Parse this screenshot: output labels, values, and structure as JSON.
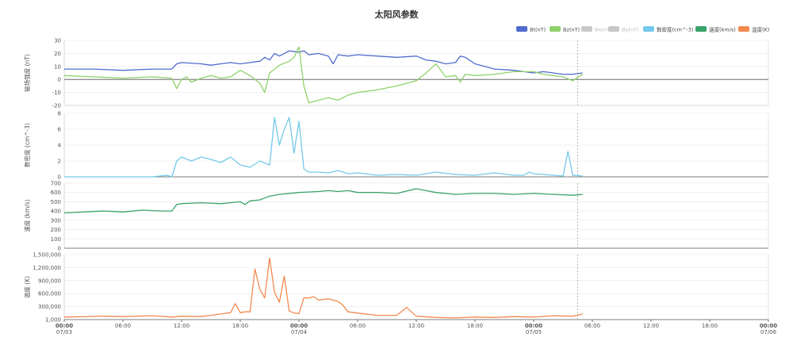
{
  "title": "太阳风参数",
  "legend": [
    {
      "name": "Bt(nT)",
      "color": "#4f6bcc",
      "active": true
    },
    {
      "name": "Bz(nT)",
      "color": "#8fd16a",
      "active": true
    },
    {
      "name": "Bx(nT)",
      "color": "#c8c8c8",
      "active": false
    },
    {
      "name": "By(nT)",
      "color": "#c8c8c8",
      "active": false
    },
    {
      "name": "数密度(cm^-3)",
      "color": "#74c9ea",
      "active": true
    },
    {
      "name": "速度(km/s)",
      "color": "#3aa36a",
      "active": true
    },
    {
      "name": "温度(K)",
      "color": "#f2894f",
      "active": true
    }
  ],
  "x_ticks": [
    {
      "t": 0,
      "time": "00:00",
      "date": "07/03",
      "bold": true
    },
    {
      "t": 6,
      "time": "06:00",
      "date": "",
      "bold": false
    },
    {
      "t": 12,
      "time": "12:00",
      "date": "",
      "bold": false
    },
    {
      "t": 18,
      "time": "18:00",
      "date": "",
      "bold": false
    },
    {
      "t": 24,
      "time": "00:00",
      "date": "07/04",
      "bold": true
    },
    {
      "t": 30,
      "time": "06:00",
      "date": "",
      "bold": false
    },
    {
      "t": 36,
      "time": "12:00",
      "date": "",
      "bold": false
    },
    {
      "t": 42,
      "time": "18:00",
      "date": "",
      "bold": false
    },
    {
      "t": 48,
      "time": "00:00",
      "date": "07/05",
      "bold": true
    },
    {
      "t": 54,
      "time": "06:00",
      "date": "",
      "bold": false
    },
    {
      "t": 60,
      "time": "12:00",
      "date": "",
      "bold": false
    },
    {
      "t": 66,
      "time": "18:00",
      "date": "",
      "bold": false
    },
    {
      "t": 72,
      "time": "00:00",
      "date": "07/06",
      "bold": true
    }
  ],
  "chart_data": [
    {
      "type": "line",
      "ylabel": "磁场强度 (nT)",
      "ylim": [
        -20,
        30
      ],
      "yticks": [
        "-20",
        "-10",
        "0",
        "10",
        "20",
        "30"
      ],
      "x_unit": "hours since 07/03 00:00",
      "series": [
        {
          "name": "Bt(nT)",
          "color": "#4f6bcc",
          "x": [
            0,
            3,
            6,
            9,
            11,
            11.5,
            12,
            14,
            15,
            16,
            17,
            18,
            19,
            20,
            20.5,
            21,
            21.5,
            22,
            22.5,
            23,
            24,
            24.5,
            25,
            26,
            27,
            27.5,
            28,
            29,
            30,
            32,
            34,
            36,
            37,
            38,
            39,
            40,
            40.5,
            41,
            42,
            43,
            44,
            46,
            48,
            49,
            50,
            51,
            52,
            53
          ],
          "y": [
            8,
            8,
            7,
            8,
            8,
            12,
            13,
            12,
            11,
            12,
            13,
            12,
            13,
            14,
            17,
            15,
            20,
            18,
            20,
            22,
            21,
            22,
            19,
            20,
            18,
            12,
            19,
            18,
            19,
            18,
            17,
            18,
            15,
            14,
            12,
            13,
            18,
            17,
            12,
            10,
            8,
            7,
            5,
            6,
            5,
            4,
            4,
            5
          ]
        },
        {
          "name": "Bz(nT)",
          "color": "#8fd16a",
          "x": [
            0,
            3,
            6,
            9,
            11,
            11.5,
            12,
            12.5,
            13,
            14,
            15,
            16,
            17,
            18,
            19,
            20,
            20.5,
            21,
            21.5,
            22,
            23,
            23.5,
            24,
            24.5,
            25,
            26,
            27,
            28,
            29,
            30,
            32,
            34,
            36,
            37,
            38,
            39,
            40,
            40.5,
            41,
            42,
            44,
            46,
            48,
            49,
            50,
            51,
            52,
            53
          ],
          "y": [
            3,
            2,
            1,
            2,
            1,
            -7,
            0,
            2,
            -2,
            1,
            3,
            1,
            2,
            7,
            3,
            -3,
            -10,
            5,
            8,
            11,
            14,
            17,
            25,
            -5,
            -18,
            -16,
            -14,
            -16,
            -12,
            -10,
            -8,
            -5,
            -1,
            5,
            12,
            2,
            3,
            -2,
            4,
            3,
            4,
            6,
            6,
            4,
            3,
            2,
            -1,
            4
          ]
        },
        {
          "name": "数密度(cm^-3)",
          "color": "#74c9ea",
          "x": [
            0,
            6,
            9,
            10.5,
            11,
            11.5,
            12,
            13,
            14,
            15,
            16,
            17,
            18,
            19,
            20,
            21,
            21.5,
            22,
            22.5,
            23,
            23.5,
            24,
            24.5,
            25,
            26,
            27,
            28,
            29,
            30,
            32,
            34,
            36,
            38,
            40,
            42,
            44,
            46,
            47,
            47.5,
            48,
            49,
            50,
            51,
            51.5,
            52,
            53
          ],
          "y": [
            0,
            0,
            0,
            0.2,
            0,
            2,
            2.5,
            2,
            2.5,
            2.2,
            1.8,
            2.5,
            1.5,
            1.2,
            2,
            1.5,
            7.5,
            4,
            6,
            7.5,
            3,
            7,
            1,
            0.6,
            0.6,
            0.5,
            0.8,
            0.4,
            0.5,
            0.2,
            0.3,
            0.2,
            0.6,
            0.3,
            0.2,
            0.5,
            0.2,
            0.2,
            0.6,
            0.4,
            0.3,
            0.2,
            0.1,
            3.2,
            0.2,
            0.1
          ]
        },
        {
          "name": "速度(km/s)",
          "color": "#3aa36a",
          "x": [
            0,
            4,
            6,
            8,
            10,
            11,
            11.5,
            12,
            14,
            16,
            17,
            18,
            18.5,
            19,
            20,
            20.5,
            21,
            22,
            24,
            26,
            27,
            28,
            29,
            30,
            32,
            34,
            36,
            37,
            38,
            40,
            42,
            44,
            46,
            48,
            50,
            52,
            53
          ],
          "y": [
            380,
            400,
            390,
            410,
            400,
            400,
            470,
            480,
            490,
            480,
            490,
            500,
            470,
            510,
            520,
            540,
            560,
            580,
            600,
            610,
            620,
            610,
            620,
            600,
            600,
            590,
            640,
            620,
            600,
            580,
            590,
            590,
            580,
            590,
            580,
            570,
            580
          ]
        },
        {
          "name": "温度(K)",
          "color": "#f2894f",
          "x": [
            0,
            4,
            6,
            9,
            11,
            12,
            14,
            15,
            16,
            17,
            17.5,
            18,
            18.5,
            19,
            19.5,
            20,
            20.5,
            21,
            21.5,
            22,
            22.5,
            23,
            23.5,
            24,
            24.5,
            25,
            25.5,
            26,
            27,
            28,
            28.5,
            29,
            30,
            32,
            34,
            35,
            36,
            38,
            40,
            42,
            44,
            46,
            48,
            50,
            52,
            53
          ],
          "y": [
            60000,
            80000,
            70000,
            90000,
            60000,
            80000,
            70000,
            100000,
            130000,
            160000,
            370000,
            160000,
            180000,
            180000,
            1170000,
            700000,
            500000,
            1420000,
            630000,
            400000,
            1000000,
            200000,
            150000,
            140000,
            500000,
            500000,
            530000,
            450000,
            480000,
            420000,
            330000,
            180000,
            150000,
            100000,
            100000,
            280000,
            80000,
            50000,
            40000,
            60000,
            50000,
            70000,
            60000,
            90000,
            80000,
            130000
          ]
        }
      ]
    },
    {
      "type": "line",
      "ylabel": "数密度 (cm^-3)",
      "ylim": [
        0,
        8
      ],
      "yticks": [
        "0",
        "2",
        "4",
        "6",
        "8"
      ]
    },
    {
      "type": "line",
      "ylabel": "速度 (km/s)",
      "ylim": [
        0,
        700
      ],
      "yticks": [
        "0",
        "100",
        "200",
        "300",
        "400",
        "500",
        "600",
        "700"
      ]
    },
    {
      "type": "line",
      "ylabel": "温度 (K)",
      "ylim": [
        1000,
        1500000
      ],
      "yticks": [
        "1,000",
        "300,000",
        "600,000",
        "900,000",
        "1,200,000",
        "1,500,000"
      ]
    }
  ],
  "current_time_marker_hours": 52.5
}
